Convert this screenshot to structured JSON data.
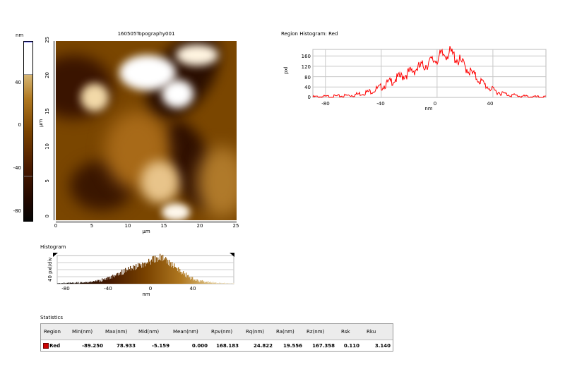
{
  "colorbar": {
    "unit": "nm",
    "ticks": [
      "40",
      "0",
      "-40",
      "-80"
    ]
  },
  "topography": {
    "title": "160505Topography001",
    "y_axis_label": "µm",
    "x_axis_label": "µm",
    "y_ticks": [
      "25",
      "20",
      "15",
      "10",
      "5",
      "0"
    ],
    "x_ticks": [
      "0",
      "5",
      "10",
      "15",
      "20",
      "25"
    ]
  },
  "region_histogram": {
    "title": "Region Histogram: Red",
    "ylabel": "pxl",
    "xlabel": "nm",
    "y_ticks": [
      "160",
      "120",
      "80",
      "40",
      "0"
    ],
    "x_ticks": [
      "-80",
      "-40",
      "0",
      "40"
    ],
    "line_color": "#ff0000"
  },
  "histogram": {
    "title": "Histogram",
    "ylabel": "40 pxl/div",
    "xlabel": "nm",
    "x_ticks": [
      "-80",
      "-40",
      "0",
      "40"
    ]
  },
  "statistics": {
    "title": "Statistics",
    "headers": [
      "Region",
      "Min(nm)",
      "Max(nm)",
      "Mid(nm)",
      "Mean(nm)",
      "Rpv(nm)",
      "Rq(nm)",
      "Ra(nm)",
      "Rz(nm)",
      "Rsk",
      "Rku"
    ],
    "row": [
      "Red",
      "-89.250",
      "78.933",
      "-5.159",
      "0.000",
      "168.183",
      "24.822",
      "19.556",
      "167.358",
      "0.110",
      "3.140"
    ]
  },
  "chart_data": [
    {
      "type": "line",
      "title": "Region Histogram: Red",
      "xlabel": "nm",
      "ylabel": "pxl",
      "xlim": [
        -89,
        78
      ],
      "ylim": [
        0,
        185
      ],
      "series": [
        {
          "x": [
            -89,
            -80,
            -70,
            -60,
            -50,
            -45,
            -40,
            -35,
            -30,
            -25,
            -20,
            -15,
            -10,
            -5,
            0,
            5,
            8,
            10,
            12,
            15,
            20,
            25,
            30,
            35,
            40,
            45,
            50,
            55,
            60,
            65,
            70,
            78
          ],
          "values": [
            2,
            3,
            5,
            9,
            20,
            28,
            40,
            55,
            70,
            82,
            95,
            110,
            122,
            135,
            150,
            165,
            172,
            168,
            160,
            145,
            120,
            92,
            68,
            45,
            28,
            18,
            12,
            8,
            5,
            3,
            2,
            1
          ]
        }
      ]
    },
    {
      "type": "bar",
      "title": "Histogram",
      "xlabel": "nm",
      "ylabel": "40 pxl/div",
      "xlim": [
        -89,
        78
      ],
      "series": [
        {
          "x": [
            -89,
            -80,
            -70,
            -60,
            -50,
            -45,
            -40,
            -35,
            -30,
            -25,
            -20,
            -15,
            -10,
            -5,
            0,
            5,
            8,
            10,
            12,
            15,
            20,
            25,
            30,
            35,
            40,
            45,
            50,
            55,
            60,
            65,
            70,
            78
          ],
          "values": [
            2,
            3,
            5,
            9,
            20,
            28,
            40,
            55,
            70,
            82,
            95,
            110,
            122,
            135,
            150,
            165,
            172,
            168,
            160,
            145,
            120,
            92,
            68,
            45,
            28,
            18,
            12,
            8,
            5,
            3,
            2,
            1
          ]
        }
      ]
    }
  ]
}
